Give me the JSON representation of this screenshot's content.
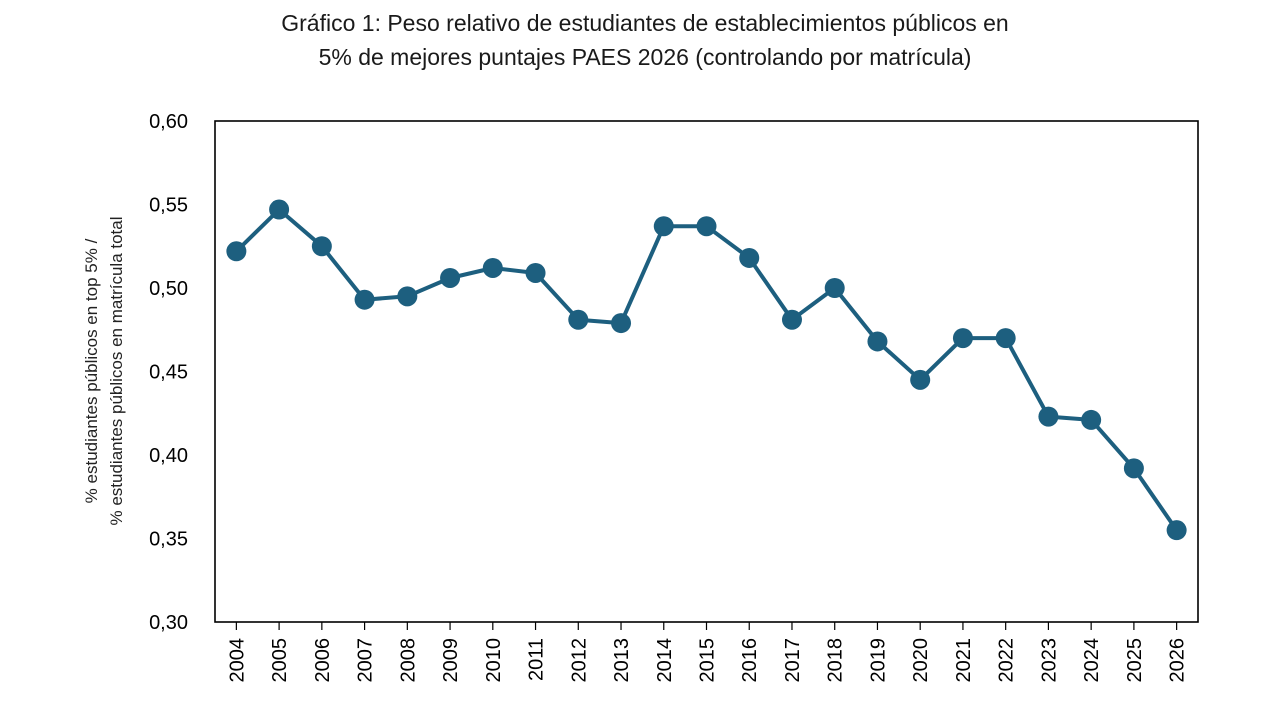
{
  "chart_data": {
    "type": "line",
    "title_line1": "Gráfico 1: Peso relativo de estudiantes de establecimientos públicos en",
    "title_line2": "5% de mejores puntajes PAES 2026 (controlando por matrícula)",
    "ylabel_line1": "% estudiantes públicos en top 5% /",
    "ylabel_line2": "% estudiantes públicos en matrícula total",
    "xlabel": "",
    "ylim": [
      0.3,
      0.6
    ],
    "yticks": [
      0.3,
      0.35,
      0.4,
      0.45,
      0.5,
      0.55,
      0.6
    ],
    "ytick_labels": [
      "0,30",
      "0,35",
      "0,40",
      "0,45",
      "0,50",
      "0,55",
      "0,60"
    ],
    "grid": false,
    "x": [
      "2004",
      "2005",
      "2006",
      "2007",
      "2008",
      "2009",
      "2010",
      "2011",
      "2012",
      "2013",
      "2014",
      "2015",
      "2016",
      "2017",
      "2018",
      "2019",
      "2020",
      "2021",
      "2022",
      "2023",
      "2024",
      "2025",
      "2026"
    ],
    "series": [
      {
        "values": [
          0.522,
          0.547,
          0.525,
          0.493,
          0.495,
          0.506,
          0.512,
          0.509,
          0.481,
          0.479,
          0.537,
          0.537,
          0.518,
          0.481,
          0.5,
          0.468,
          0.445,
          0.47,
          0.47,
          0.423,
          0.421,
          0.392,
          0.355
        ],
        "color": "#1d5f7f"
      }
    ]
  }
}
